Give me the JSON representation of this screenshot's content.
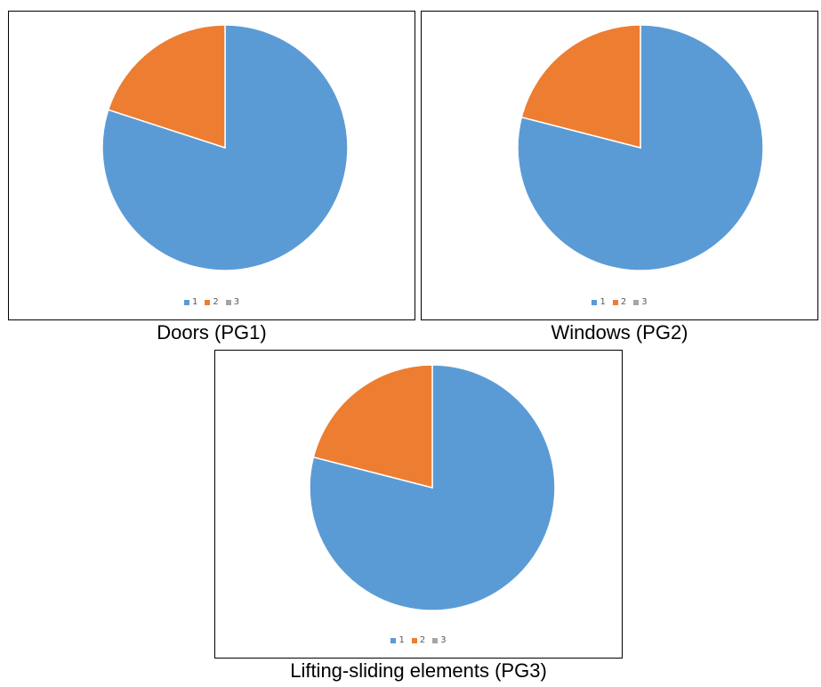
{
  "captions": {
    "c1": "Doors (PG1)",
    "c2": "Windows (PG2)",
    "c3": "Lifting-sliding elements (PG3)"
  },
  "colors": {
    "s1": "#5B9BD5",
    "s2": "#ED7D31",
    "s3": "#A5A5A5"
  },
  "chart_data": [
    {
      "type": "pie",
      "categories": [
        "1",
        "2",
        "3"
      ],
      "values": [
        80,
        20,
        0
      ]
    },
    {
      "type": "pie",
      "categories": [
        "1",
        "2",
        "3"
      ],
      "values": [
        79,
        21,
        0
      ]
    },
    {
      "type": "pie",
      "categories": [
        "1",
        "2",
        "3"
      ],
      "values": [
        79,
        21,
        0
      ]
    }
  ]
}
